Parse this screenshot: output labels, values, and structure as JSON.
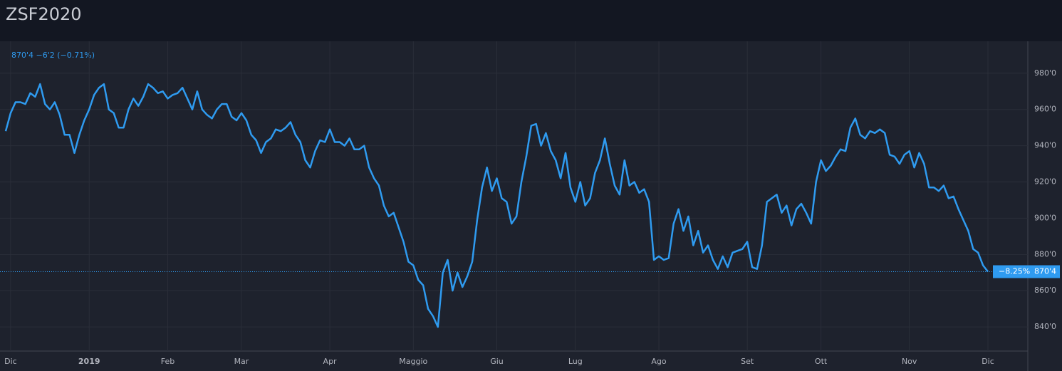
{
  "chart_data": {
    "type": "line",
    "title": "ZSF2020",
    "status_line": "870'4 −6'2 (−0.71%)",
    "last_price": {
      "value": 870.5,
      "label": "870'4"
    },
    "change_pct_label": "−8.25%",
    "color": "#2f9bf0",
    "grid": true,
    "ylim": [
      826.7,
      997.6
    ],
    "yticks": [
      {
        "value": 840,
        "label": "840'0"
      },
      {
        "value": 860,
        "label": "860'0"
      },
      {
        "value": 880,
        "label": "880'0"
      },
      {
        "value": 900,
        "label": "900'0"
      },
      {
        "value": 920,
        "label": "920'0"
      },
      {
        "value": 940,
        "label": "940'0"
      },
      {
        "value": 960,
        "label": "960'0"
      },
      {
        "value": 980,
        "label": "980'0"
      }
    ],
    "categories": [
      null,
      "Dic",
      null,
      null,
      null,
      null,
      null,
      null,
      null,
      null,
      null,
      null,
      null,
      null,
      null,
      null,
      null,
      "2019",
      null,
      null,
      null,
      null,
      null,
      null,
      null,
      null,
      null,
      null,
      null,
      null,
      null,
      null,
      null,
      "Feb",
      null,
      null,
      null,
      null,
      null,
      null,
      null,
      null,
      null,
      null,
      null,
      null,
      null,
      null,
      "Mar",
      null,
      null,
      null,
      null,
      null,
      null,
      null,
      null,
      null,
      null,
      null,
      null,
      null,
      null,
      null,
      null,
      null,
      "Apr",
      null,
      null,
      null,
      null,
      null,
      null,
      null,
      null,
      null,
      null,
      null,
      null,
      null,
      null,
      null,
      null,
      "Maggio",
      null,
      null,
      null,
      null,
      null,
      null,
      null,
      null,
      null,
      null,
      null,
      null,
      null,
      null,
      null,
      null,
      "Giu",
      null,
      null,
      null,
      null,
      null,
      null,
      null,
      null,
      null,
      null,
      null,
      null,
      null,
      null,
      null,
      "Lug",
      null,
      null,
      null,
      null,
      null,
      null,
      null,
      null,
      null,
      null,
      null,
      null,
      null,
      null,
      null,
      null,
      "Ago",
      null,
      null,
      null,
      null,
      null,
      null,
      null,
      null,
      null,
      null,
      null,
      null,
      null,
      null,
      null,
      null,
      null,
      "Set",
      null,
      null,
      null,
      null,
      null,
      null,
      null,
      null,
      null,
      null,
      null,
      null,
      null,
      null,
      "Ott",
      null,
      null,
      null,
      null,
      null,
      null,
      null,
      null,
      null,
      null,
      null,
      null,
      null,
      null,
      null,
      null,
      null,
      "Nov",
      null,
      null,
      null,
      null,
      null,
      null,
      null,
      null,
      null,
      null,
      null,
      null,
      null,
      null,
      null,
      "Dic"
    ],
    "values": [
      948,
      958,
      964,
      964,
      963,
      969,
      967,
      974,
      963,
      960,
      964,
      957,
      946,
      946,
      936,
      946,
      954,
      960,
      968,
      972,
      974,
      960,
      958,
      950,
      950,
      960,
      966,
      962,
      967,
      974,
      972,
      969,
      970,
      966,
      968,
      969,
      972,
      966,
      960,
      970,
      960,
      957,
      955,
      960,
      963,
      963,
      956,
      954,
      958,
      954,
      946,
      943,
      936,
      942,
      944,
      949,
      948,
      950,
      953,
      946,
      942,
      932,
      928,
      937,
      943,
      942,
      949,
      942,
      942,
      940,
      944,
      938,
      938,
      940,
      928,
      922,
      918,
      907,
      901,
      903,
      895,
      887,
      876,
      874,
      866,
      863,
      850,
      846,
      840,
      870,
      877,
      860,
      870,
      862,
      868,
      876,
      899,
      917,
      928,
      915,
      922,
      911,
      909,
      897,
      901,
      920,
      934,
      951,
      952,
      940,
      947,
      937,
      932,
      922,
      936,
      917,
      909,
      920,
      907,
      911,
      925,
      932,
      944,
      930,
      918,
      913,
      932,
      918,
      920,
      914,
      916,
      909,
      877,
      879,
      877,
      878,
      897,
      905,
      893,
      901,
      885,
      893,
      881,
      885,
      877,
      872,
      879,
      873,
      881,
      882,
      883,
      887,
      873,
      872,
      885,
      909,
      911,
      913,
      903,
      907,
      896,
      905,
      908,
      903,
      897,
      920,
      932,
      926,
      929,
      934,
      938,
      937,
      950,
      955,
      946,
      944,
      948,
      947,
      949,
      947,
      935,
      934,
      930,
      935,
      937,
      928,
      936,
      930,
      917,
      917,
      915,
      918,
      911,
      912,
      905,
      899,
      893,
      883,
      881,
      874,
      870.5
    ]
  }
}
